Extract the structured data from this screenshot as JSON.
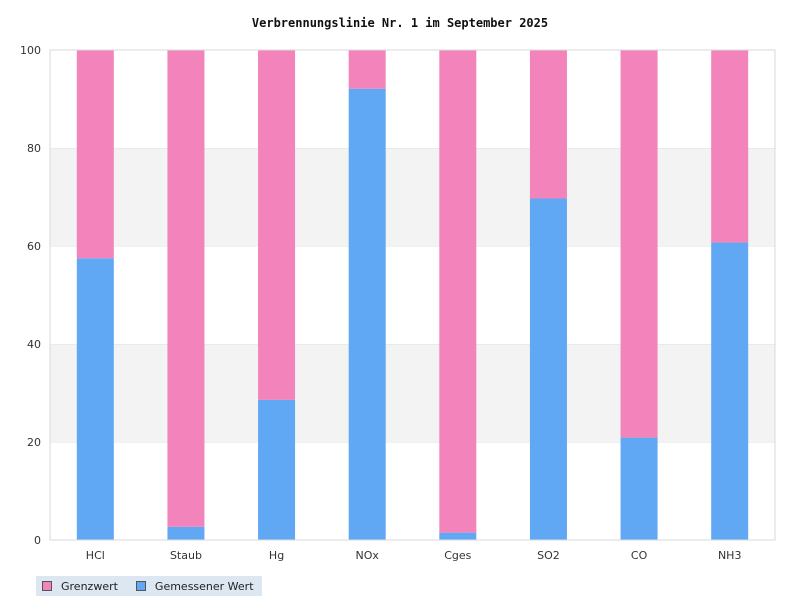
{
  "chart_data": {
    "type": "bar",
    "stacked": true,
    "title": "Verbrennungslinie Nr. 1 im September 2025",
    "categories": [
      "HCl",
      "Staub",
      "Hg",
      "NOx",
      "Cges",
      "SO2",
      "CO",
      "NH3"
    ],
    "ylim": [
      0,
      100
    ],
    "yticks": [
      0,
      20,
      40,
      60,
      80,
      100
    ],
    "grid": "horizontal alternating bands",
    "legend_position": "bottom-left",
    "series": [
      {
        "name": "Gemessener Wert",
        "color": "#60a8f4",
        "values": [
          57.5,
          2.7,
          28.6,
          92.1,
          1.5,
          69.7,
          20.9,
          60.7
        ]
      },
      {
        "name": "Grenzwert",
        "color": "#f283bb",
        "values": [
          42.5,
          97.3,
          71.4,
          7.9,
          98.5,
          30.3,
          79.1,
          39.3
        ]
      }
    ]
  },
  "legend": [
    {
      "label": "Grenzwert",
      "color": "#f283bb"
    },
    {
      "label": "Gemessener Wert",
      "color": "#60a8f4"
    }
  ]
}
